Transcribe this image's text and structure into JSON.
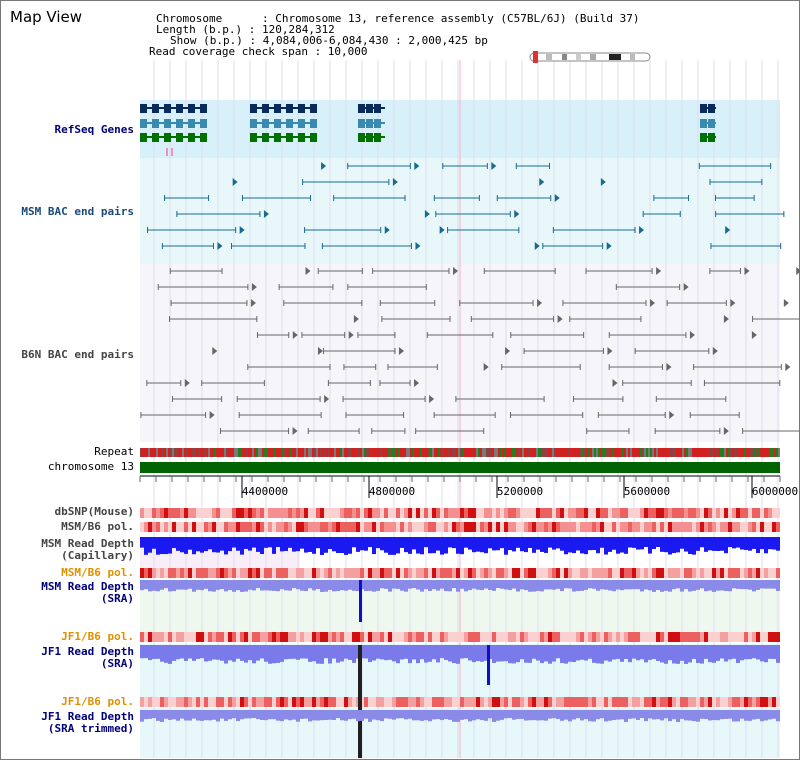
{
  "header": {
    "title": "Map View",
    "chromosome_line": "Chromosome      : Chromosome 13, reference assembly (C57BL/6J) (Build 37)",
    "length_line": "Length (b.p.) : 120,284,312",
    "show_line": "Show (b.p.) : 4,084,006-6,084,430 : 2,000,425 bp",
    "coverage_line": "Read coverage check span : 10,000"
  },
  "tracks": {
    "refseq": "RefSeq Genes",
    "msm_bac": "MSM BAC end pairs",
    "b6n_bac": "B6N BAC end pairs",
    "repeat": "Repeat",
    "chromosome": "chromosome 13",
    "dbsnp": "dbSNP(Mouse)",
    "msm_b6_pol_1": "MSM/B6 pol.",
    "msm_depth_cap_1": "MSM Read Depth",
    "msm_depth_cap_2": "(Capillary)",
    "msm_b6_pol_2": "MSM/B6 pol.",
    "msm_depth_sra_1": "MSM Read Depth",
    "msm_depth_sra_2": "(SRA)",
    "jf1_b6_pol_1": "JF1/B6 pol.",
    "jf1_depth_sra_1": "JF1 Read Depth",
    "jf1_depth_sra_2": "(SRA)",
    "jf1_b6_pol_2": "JF1/B6 pol.",
    "jf1_depth_trim_1": "JF1 Read Depth",
    "jf1_depth_trim_2": "(SRA trimmed)"
  },
  "axis": {
    "ticks": [
      "4400000",
      "4800000",
      "5200000",
      "5600000",
      "6000000"
    ]
  },
  "colors": {
    "refseq_dark": "#0a2a5a",
    "refseq_mid": "#3a8ab0",
    "refseq_green": "#007000",
    "msm_bac": "#1a6a8a",
    "b6n_bac": "#666666",
    "depth_blue": "#2020e0",
    "pol_red": "#e04040",
    "label_navy": "#00007a",
    "label_orange": "#e09000",
    "chromosome_green": "#006400"
  }
}
